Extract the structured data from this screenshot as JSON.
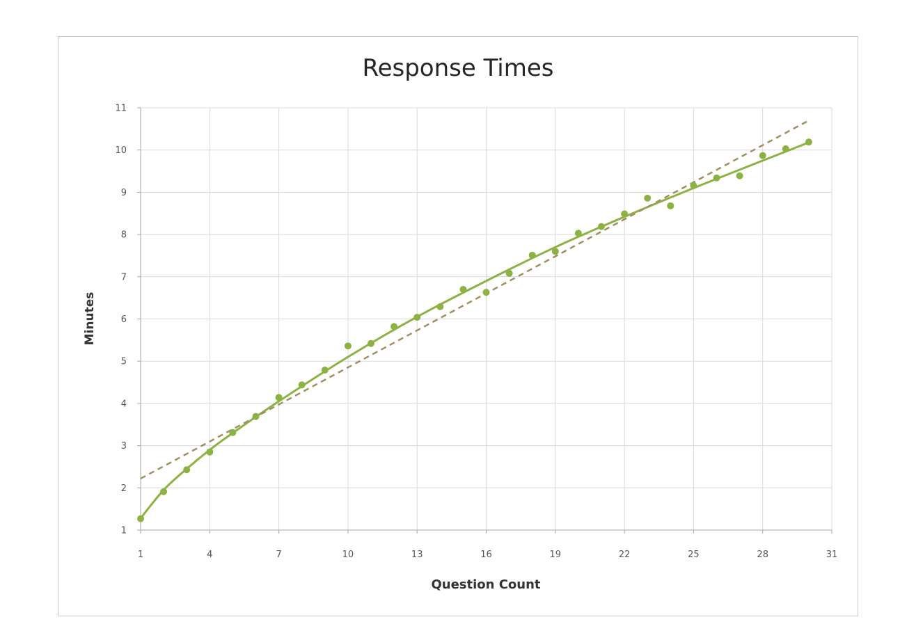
{
  "chart_data": {
    "type": "scatter",
    "title": "Response Times",
    "xlabel": "Question Count",
    "ylabel": "Minutes",
    "xlim": [
      1,
      31
    ],
    "ylim": [
      1,
      11
    ],
    "x_ticks": [
      1,
      4,
      7,
      10,
      13,
      16,
      19,
      22,
      25,
      28,
      31
    ],
    "y_ticks": [
      1,
      2,
      3,
      4,
      5,
      6,
      7,
      8,
      9,
      10,
      11
    ],
    "grid": true,
    "legend": "none",
    "series": [
      {
        "kind": "points",
        "color": "#8db244",
        "x": [
          1,
          2,
          3,
          4,
          5,
          6,
          7,
          8,
          9,
          10,
          11,
          12,
          13,
          14,
          15,
          16,
          17,
          18,
          19,
          20,
          21,
          22,
          23,
          24,
          25,
          26,
          27,
          28,
          29,
          30
        ],
        "y": [
          1.27,
          1.91,
          2.43,
          2.85,
          3.31,
          3.69,
          4.14,
          4.44,
          4.79,
          5.36,
          5.42,
          5.82,
          6.04,
          6.29,
          6.7,
          6.63,
          7.08,
          7.51,
          7.6,
          8.03,
          8.19,
          8.49,
          8.86,
          8.68,
          9.16,
          9.34,
          9.39,
          9.87,
          10.03,
          10.19
        ]
      },
      {
        "kind": "curve-trendline",
        "color": "#8db244",
        "style": "solid",
        "x": [
          1,
          2,
          3,
          4,
          5,
          7,
          10,
          13,
          16,
          19,
          22,
          25,
          28,
          30
        ],
        "y": [
          1.28,
          1.95,
          2.45,
          2.9,
          3.3,
          4.05,
          5.1,
          6.05,
          6.9,
          7.7,
          8.42,
          9.1,
          9.75,
          10.18
        ]
      },
      {
        "kind": "linear-trendline",
        "color": "#a09060",
        "style": "dashed",
        "x": [
          1,
          30
        ],
        "y": [
          2.22,
          10.7
        ]
      }
    ]
  }
}
